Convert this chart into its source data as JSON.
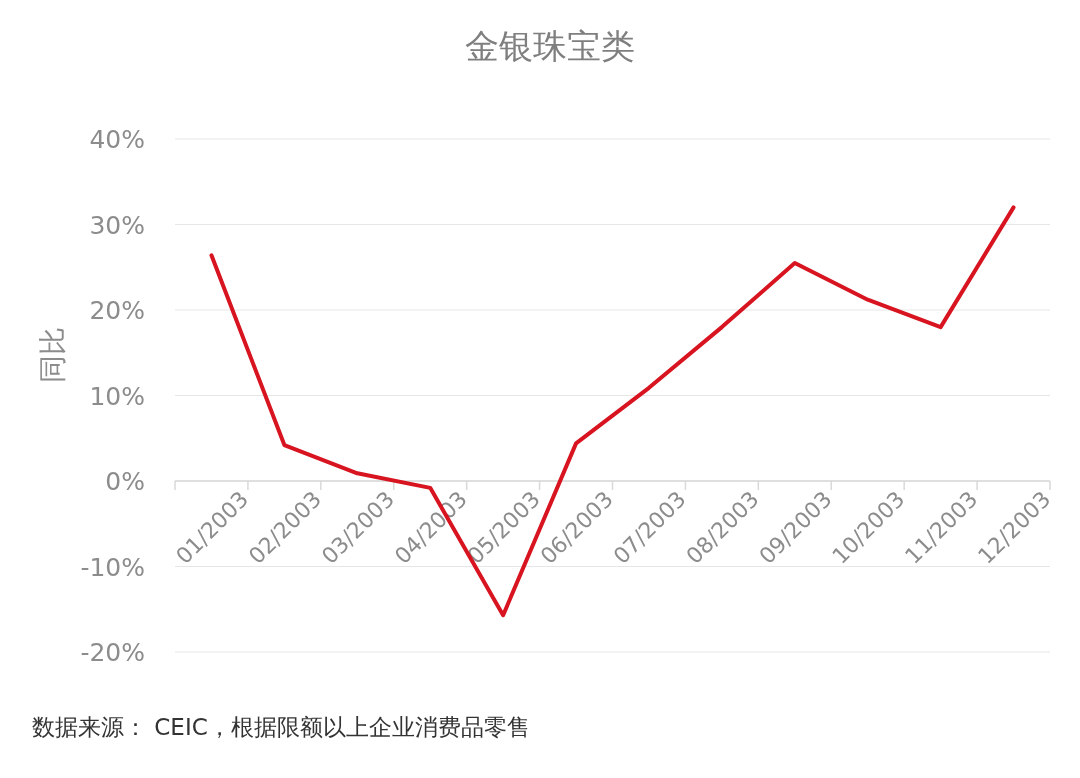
{
  "chart_data": {
    "type": "line",
    "title": "金银珠宝类",
    "ylabel": "同比",
    "categories": [
      "01/2003",
      "02/2003",
      "03/2003",
      "04/2003",
      "05/2003",
      "06/2003",
      "07/2003",
      "08/2003",
      "09/2003",
      "10/2003",
      "11/2003",
      "12/2003"
    ],
    "values": [
      26.4,
      4.2,
      0.9,
      -0.8,
      -15.7,
      4.4,
      10.9,
      18.0,
      25.5,
      21.2,
      18.0,
      32.0
    ],
    "color": "#d7141f",
    "ylim": [
      -20,
      40
    ],
    "yticks": [
      {
        "value": -20,
        "label": "-20%"
      },
      {
        "value": -10,
        "label": "-10%"
      },
      {
        "value": 0,
        "label": "0%"
      },
      {
        "value": 10,
        "label": "10%"
      },
      {
        "value": 20,
        "label": "20%"
      },
      {
        "value": 30,
        "label": "30%"
      },
      {
        "value": 40,
        "label": "40%"
      }
    ],
    "grid": "y",
    "annotations": [
      "数据来源： CEIC，根据限额以上企业消费品零售"
    ]
  }
}
